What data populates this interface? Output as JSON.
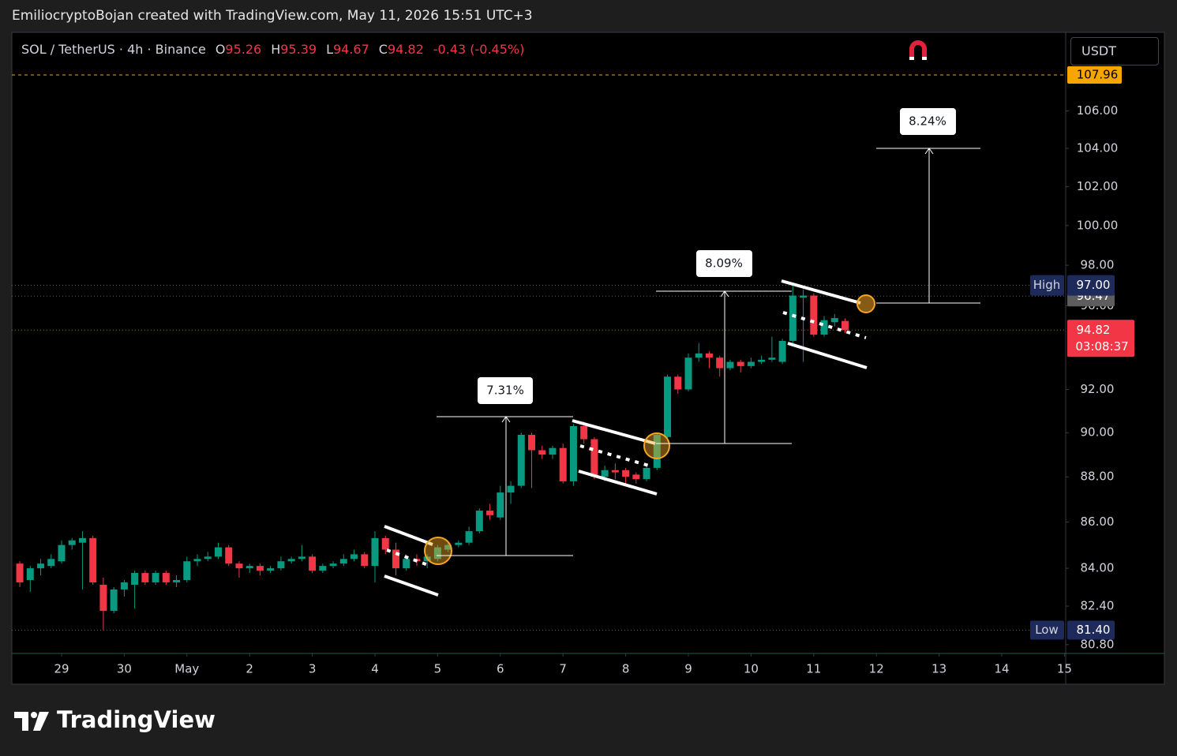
{
  "page": {
    "credit": "EmiliocryptoBojan created with TradingView.com, May 11, 2026 15:51 UTC+3",
    "brand": "TradingView"
  },
  "chart_data": {
    "type": "candlestick",
    "symbol": "SOL / TetherUS · 4h · Binance",
    "legend_keys": [
      "O",
      "H",
      "L",
      "C"
    ],
    "change": "-0.43 (-0.45%)",
    "currency": "USDT",
    "up_color": "#089981",
    "down_color": "#f23645",
    "log_scale": true,
    "grid": false,
    "open": [
      84.2,
      83.5,
      84.0,
      84.1,
      84.3,
      85.0,
      85.1,
      85.3,
      83.3,
      82.2,
      83.1,
      83.3,
      83.8,
      83.4,
      83.8,
      83.4,
      83.5,
      84.3,
      84.4,
      84.5,
      84.9,
      84.2,
      84.0,
      84.1,
      83.9,
      84.0,
      84.3,
      84.4,
      84.5,
      83.9,
      84.1,
      84.2,
      84.4,
      84.6,
      84.1,
      85.3,
      84.8,
      84.0,
      84.4,
      84.3,
      84.4,
      84.8,
      85.0,
      85.1,
      85.6,
      86.5,
      86.2,
      87.3,
      87.6,
      89.9,
      89.2,
      89.0,
      89.3,
      87.8,
      90.3,
      89.7,
      88.0,
      88.3,
      88.3,
      88.1,
      87.9,
      88.4,
      89.8,
      92.6,
      92.0,
      93.5,
      93.7,
      93.5,
      93.0,
      93.3,
      93.1,
      93.3,
      93.4,
      93.3,
      94.3,
      96.4,
      96.5,
      94.6,
      95.2,
      95.26
    ],
    "high": [
      84.3,
      84.1,
      84.4,
      84.6,
      85.2,
      85.3,
      85.6,
      85.4,
      83.6,
      83.2,
      83.5,
      83.9,
      83.9,
      83.9,
      83.9,
      83.7,
      84.5,
      84.6,
      84.7,
      85.1,
      85.0,
      84.3,
      84.2,
      84.2,
      84.1,
      84.5,
      84.5,
      85.0,
      84.6,
      84.2,
      84.3,
      84.6,
      84.8,
      84.7,
      85.6,
      85.4,
      85.1,
      84.6,
      84.6,
      84.6,
      85.0,
      85.1,
      85.2,
      85.8,
      86.6,
      86.8,
      87.6,
      87.8,
      90.0,
      90.0,
      89.4,
      89.4,
      89.5,
      90.4,
      90.5,
      89.8,
      88.5,
      88.6,
      88.4,
      88.2,
      88.6,
      90.0,
      92.7,
      92.7,
      93.7,
      94.2,
      93.8,
      93.6,
      93.4,
      93.4,
      93.5,
      93.6,
      94.5,
      94.4,
      97.0,
      96.8,
      96.6,
      95.5,
      95.6,
      95.39
    ],
    "low": [
      83.2,
      83.0,
      83.7,
      84.0,
      84.2,
      84.8,
      83.1,
      83.3,
      81.4,
      82.1,
      82.8,
      82.3,
      83.3,
      83.3,
      83.3,
      83.2,
      83.4,
      84.1,
      84.3,
      84.4,
      84.1,
      83.6,
      83.8,
      83.7,
      83.8,
      83.9,
      84.2,
      84.3,
      83.8,
      83.8,
      84.0,
      84.1,
      84.3,
      84.0,
      83.4,
      84.6,
      83.7,
      83.9,
      84.1,
      84.0,
      84.3,
      84.7,
      84.9,
      85.0,
      85.5,
      86.1,
      86.1,
      86.8,
      87.5,
      87.5,
      88.8,
      88.8,
      87.7,
      87.6,
      89.5,
      87.9,
      87.8,
      87.9,
      87.6,
      87.7,
      87.8,
      88.3,
      89.6,
      91.8,
      91.9,
      93.3,
      93.0,
      92.6,
      92.9,
      92.8,
      93.0,
      93.2,
      93.3,
      93.2,
      94.1,
      93.3,
      94.5,
      94.5,
      95.0,
      94.67
    ],
    "close": [
      83.4,
      84.0,
      84.2,
      84.4,
      85.0,
      85.2,
      85.3,
      83.4,
      82.2,
      83.1,
      83.4,
      83.8,
      83.4,
      83.8,
      83.4,
      83.5,
      84.3,
      84.4,
      84.5,
      84.9,
      84.2,
      84.0,
      84.1,
      83.9,
      84.0,
      84.3,
      84.4,
      84.5,
      83.9,
      84.1,
      84.2,
      84.4,
      84.6,
      84.1,
      85.3,
      84.8,
      84.0,
      84.4,
      84.3,
      84.5,
      84.9,
      85.0,
      85.1,
      85.6,
      86.5,
      86.3,
      87.3,
      87.6,
      89.9,
      89.2,
      89.0,
      89.3,
      87.8,
      90.3,
      89.7,
      88.0,
      88.3,
      88.2,
      88.0,
      87.9,
      88.4,
      89.9,
      92.6,
      92.0,
      93.5,
      93.7,
      93.5,
      93.0,
      93.3,
      93.1,
      93.3,
      93.4,
      93.5,
      94.3,
      96.5,
      96.5,
      94.6,
      95.3,
      95.4,
      94.82
    ],
    "ylim": [
      80.44,
      110.28
    ],
    "yticks": [
      {
        "value": 80.8,
        "label": "80.80"
      },
      {
        "value": 82.4,
        "label": "82.40"
      },
      {
        "value": 84,
        "label": "84.00"
      },
      {
        "value": 86,
        "label": "86.00"
      },
      {
        "value": 88,
        "label": "88.00"
      },
      {
        "value": 90,
        "label": "90.00"
      },
      {
        "value": 92,
        "label": "92.00"
      },
      {
        "value": 96,
        "label": "96.00"
      },
      {
        "value": 98,
        "label": "98.00"
      },
      {
        "value": 100,
        "label": "100.00"
      },
      {
        "value": 102,
        "label": "102.00"
      },
      {
        "value": 104,
        "label": "104.00"
      },
      {
        "value": 106,
        "label": "106.00"
      }
    ],
    "xlim": [
      -0.76,
      100.12
    ],
    "xticks": [
      {
        "value": 4,
        "label": "29"
      },
      {
        "value": 10,
        "label": "30"
      },
      {
        "value": 16,
        "label": "May"
      },
      {
        "value": 22,
        "label": "2"
      },
      {
        "value": 28,
        "label": "3"
      },
      {
        "value": 34,
        "label": "4"
      },
      {
        "value": 40,
        "label": "5"
      },
      {
        "value": 46,
        "label": "6"
      },
      {
        "value": 52,
        "label": "7"
      },
      {
        "value": 58,
        "label": "8"
      },
      {
        "value": 64,
        "label": "9"
      },
      {
        "value": 70,
        "label": "10"
      },
      {
        "value": 76,
        "label": "11"
      },
      {
        "value": 82,
        "label": "12"
      },
      {
        "value": 88,
        "label": "13"
      },
      {
        "value": 94,
        "label": "14"
      },
      {
        "value": 100,
        "label": "15"
      }
    ],
    "alert_price": 107.96,
    "marked_price": 96.47,
    "high_label": "High",
    "session_high": {
      "value": 97,
      "label": "97.00"
    },
    "low_label": "Low",
    "session_low": {
      "value": 81.4,
      "label": "81.40"
    },
    "countdown": "03:08:37",
    "annotations": [
      "7.31%",
      "8.09%",
      "8.24%"
    ]
  }
}
